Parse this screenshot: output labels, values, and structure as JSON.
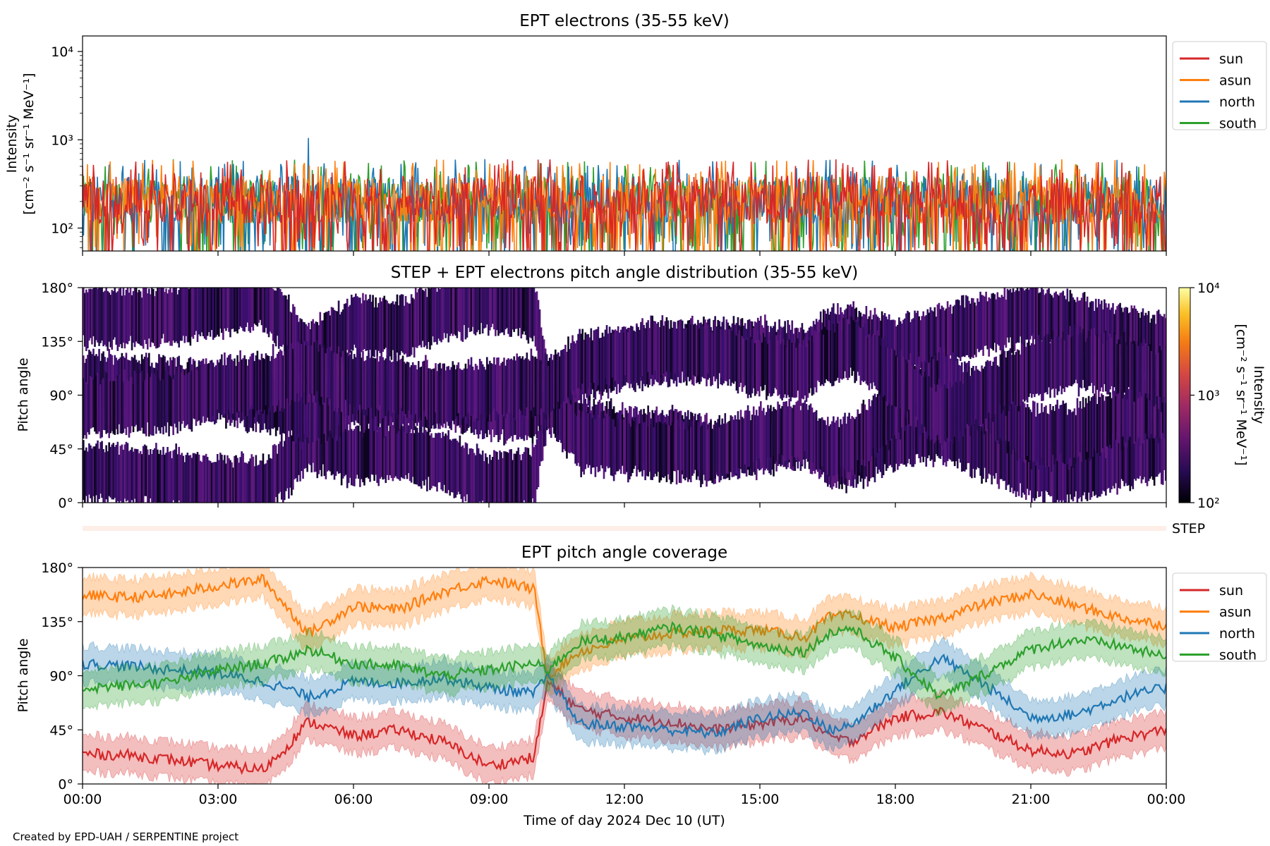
{
  "credit": "Created by EPD-UAH / SERPENTINE project",
  "chart_data": [
    {
      "type": "line",
      "title": "EPT electrons (35-55 keV)",
      "ylabel": [
        "Intensity",
        "[cm⁻² s⁻¹ sr⁻¹ MeV⁻¹]"
      ],
      "yscale": "log",
      "ylim": [
        55,
        15000
      ],
      "yticks": [
        {
          "value": 100,
          "label": "10²"
        },
        {
          "value": 1000,
          "label": "10³"
        },
        {
          "value": 10000,
          "label": "10⁴"
        }
      ],
      "xlim_hours": [
        0,
        24
      ],
      "typical_range": [
        55,
        700
      ],
      "notable_peak": {
        "series": "north",
        "x": "05:00",
        "y": 1050
      },
      "legend": {
        "placement": "upper-right outside",
        "entries": [
          "sun",
          "asun",
          "north",
          "south"
        ]
      },
      "series": [
        {
          "name": "sun",
          "color": "#d62728"
        },
        {
          "name": "asun",
          "color": "#ff7f0e"
        },
        {
          "name": "north",
          "color": "#1f77b4"
        },
        {
          "name": "south",
          "color": "#2ca02c"
        }
      ]
    },
    {
      "type": "heatmap",
      "title": "STEP + EPT electrons pitch angle distribution (35-55 keV)",
      "ylabel": "Pitch angle",
      "ylim": [
        0,
        180
      ],
      "yticks": [
        "0°",
        "45°",
        "90°",
        "135°",
        "180°"
      ],
      "colorbar": {
        "label": [
          "Intensity",
          "[cm⁻² s⁻¹ sr⁻¹ MeV⁻¹]"
        ],
        "scale": "log",
        "range": [
          100,
          10000
        ],
        "ticks": [
          "10²",
          "10³",
          "10⁴"
        ],
        "colormap": "inferno"
      },
      "step_label": "STEP"
    },
    {
      "type": "line",
      "title": "EPT pitch angle coverage",
      "ylabel": "Pitch angle",
      "xlabel": "Time of day 2024 Dec 10 (UT)",
      "ylim": [
        0,
        180
      ],
      "yticks": [
        "0°",
        "45°",
        "90°",
        "135°",
        "180°"
      ],
      "xticks": [
        "00:00",
        "03:00",
        "06:00",
        "09:00",
        "12:00",
        "15:00",
        "18:00",
        "21:00",
        "00:00"
      ],
      "legend": {
        "placement": "upper-right outside",
        "entries": [
          "sun",
          "asun",
          "north",
          "south"
        ]
      },
      "band_halfwidth_deg": 15,
      "x_hours": [
        0,
        1,
        2,
        3,
        4,
        4.5,
        5,
        6,
        7,
        8,
        9,
        10,
        10.3,
        11,
        12,
        13,
        14,
        15,
        16,
        16.5,
        17,
        18,
        19,
        20,
        21,
        22,
        23,
        24
      ],
      "series": [
        {
          "name": "sun",
          "color": "#d62728",
          "values": [
            25,
            24,
            20,
            15,
            12,
            30,
            52,
            40,
            45,
            35,
            15,
            22,
            85,
            62,
            55,
            52,
            45,
            50,
            55,
            40,
            35,
            55,
            60,
            45,
            28,
            25,
            38,
            45
          ]
        },
        {
          "name": "asun",
          "color": "#ff7f0e",
          "values": [
            157,
            155,
            158,
            165,
            170,
            148,
            125,
            148,
            145,
            160,
            170,
            162,
            90,
            110,
            120,
            125,
            128,
            128,
            122,
            138,
            140,
            130,
            138,
            150,
            158,
            148,
            138,
            132
          ]
        },
        {
          "name": "north",
          "color": "#1f77b4",
          "values": [
            100,
            98,
            95,
            92,
            85,
            80,
            72,
            85,
            84,
            88,
            80,
            75,
            90,
            50,
            48,
            45,
            42,
            55,
            60,
            45,
            48,
            78,
            105,
            82,
            55,
            58,
            72,
            80
          ]
        },
        {
          "name": "south",
          "color": "#2ca02c",
          "values": [
            80,
            82,
            85,
            95,
            100,
            105,
            112,
            100,
            98,
            90,
            95,
            100,
            95,
            118,
            122,
            130,
            125,
            115,
            110,
            125,
            130,
            105,
            72,
            92,
            112,
            120,
            115,
            105
          ]
        }
      ]
    }
  ]
}
